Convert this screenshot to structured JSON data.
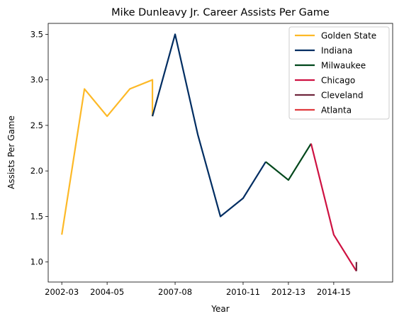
{
  "chart_data": {
    "type": "line",
    "title": "Mike Dunleavy Jr. Career Assists Per Game",
    "xlabel": "Year",
    "ylabel": "Assists Per Game",
    "x_ticks": [
      "2002-03",
      "2004-05",
      "2007-08",
      "2010-11",
      "2012-13",
      "2014-15"
    ],
    "y_ticks": [
      "1.0",
      "1.5",
      "2.0",
      "2.5",
      "3.0",
      "3.5"
    ],
    "ylim": [
      0.78,
      3.62
    ],
    "grid": false,
    "legend_position": "top-right",
    "series": [
      {
        "name": "Golden State",
        "color": "#FDB927",
        "points": [
          {
            "x": "2002-03",
            "y": 1.3
          },
          {
            "x": "2003-04",
            "y": 2.9
          },
          {
            "x": "2004-05",
            "y": 2.6
          },
          {
            "x": "2005-06",
            "y": 2.9
          },
          {
            "x": "2006-07",
            "y": 3.0
          },
          {
            "x": "2006-07",
            "y": 2.6
          }
        ]
      },
      {
        "name": "Indiana",
        "color": "#002D62",
        "points": [
          {
            "x": "2006-07",
            "y": 2.6
          },
          {
            "x": "2007-08",
            "y": 3.5
          },
          {
            "x": "2008-09",
            "y": 2.4
          },
          {
            "x": "2009-10",
            "y": 1.5
          },
          {
            "x": "2010-11",
            "y": 1.7
          },
          {
            "x": "2011-12",
            "y": 2.1
          }
        ]
      },
      {
        "name": "Milwaukee",
        "color": "#00471B",
        "points": [
          {
            "x": "2011-12",
            "y": 2.1
          },
          {
            "x": "2012-13",
            "y": 1.9
          },
          {
            "x": "2013-14",
            "y": 2.3
          }
        ]
      },
      {
        "name": "Chicago",
        "color": "#CE1141",
        "points": [
          {
            "x": "2013-14",
            "y": 2.3
          },
          {
            "x": "2014-15",
            "y": 1.3
          },
          {
            "x": "2015-16",
            "y": 0.9
          }
        ]
      },
      {
        "name": "Cleveland",
        "color": "#6F263D",
        "points": [
          {
            "x": "2015-16",
            "y": 0.9
          },
          {
            "x": "2015-16",
            "y": 1.0
          }
        ]
      },
      {
        "name": "Atlanta",
        "color": "#E03A3E",
        "points": []
      }
    ]
  }
}
